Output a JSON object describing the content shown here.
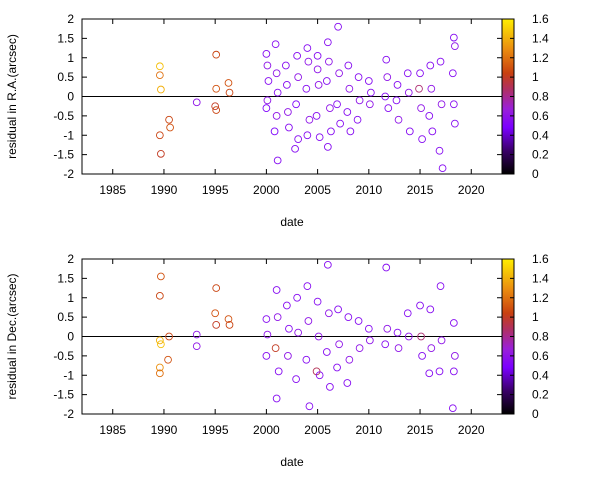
{
  "chart_data": [
    {
      "type": "scatter",
      "xlabel": "date",
      "ylabel": "residual in R.A.(arcsec)",
      "xlim": [
        1982,
        2023
      ],
      "ylim": [
        -2,
        2
      ],
      "xticks": [
        "1985",
        "1990",
        "1995",
        "2000",
        "2005",
        "2010",
        "2015",
        "2020"
      ],
      "yticks": [
        "-2",
        "-1.5",
        "-1",
        "-0.5",
        "0",
        "0.5",
        "1",
        "1.5",
        "2"
      ],
      "zero_line": true,
      "colorbar": {
        "range": [
          0,
          1.6
        ],
        "ticks": [
          "0",
          "0.2",
          "0.4",
          "0.6",
          "0.8",
          "1",
          "1.2",
          "1.4",
          "1.6"
        ]
      },
      "series": [
        {
          "points": [
            [
              1989.6,
              0.78,
              1.45
            ],
            [
              1989.6,
              0.55,
              1.2
            ],
            [
              1989.7,
              0.18,
              1.4
            ],
            [
              1989.6,
              -1.0,
              1.05
            ],
            [
              1989.7,
              -1.48,
              1.0
            ],
            [
              1990.5,
              -0.6,
              1.05
            ],
            [
              1990.6,
              -0.8,
              1.1
            ],
            [
              1993.2,
              -0.15,
              0.6
            ],
            [
              1995.1,
              1.08,
              1.05
            ],
            [
              1995.1,
              0.2,
              1.1
            ],
            [
              1995.0,
              -0.25,
              1.0
            ],
            [
              1995.1,
              -0.35,
              1.05
            ],
            [
              1996.3,
              0.35,
              1.1
            ],
            [
              1996.4,
              0.1,
              1.05
            ],
            [
              2000.0,
              1.1,
              0.55
            ],
            [
              2000.1,
              0.8,
              0.6
            ],
            [
              2000.2,
              0.4,
              0.55
            ],
            [
              2000.1,
              -0.1,
              0.6
            ],
            [
              2000.0,
              -0.3,
              0.5
            ],
            [
              2000.9,
              1.35,
              0.55
            ],
            [
              2001.0,
              0.6,
              0.6
            ],
            [
              2001.1,
              0.1,
              0.55
            ],
            [
              2001.0,
              -0.5,
              0.6
            ],
            [
              2001.1,
              -1.65,
              0.55
            ],
            [
              2000.8,
              -0.9,
              0.5
            ],
            [
              2002.0,
              0.3,
              0.55
            ],
            [
              2002.1,
              -0.4,
              0.6
            ],
            [
              2002.2,
              -0.8,
              0.55
            ],
            [
              2001.9,
              0.8,
              0.55
            ],
            [
              2003.0,
              1.05,
              0.55
            ],
            [
              2003.1,
              0.5,
              0.6
            ],
            [
              2002.9,
              -0.2,
              0.5
            ],
            [
              2003.1,
              -1.1,
              0.55
            ],
            [
              2002.8,
              -1.35,
              0.55
            ],
            [
              2004.0,
              1.25,
              0.55
            ],
            [
              2004.1,
              0.9,
              0.6
            ],
            [
              2003.9,
              0.2,
              0.55
            ],
            [
              2004.2,
              -0.6,
              0.6
            ],
            [
              2004.0,
              -1.0,
              0.55
            ],
            [
              2005.0,
              1.05,
              0.55
            ],
            [
              2005.1,
              0.3,
              0.6
            ],
            [
              2004.9,
              -0.5,
              0.55
            ],
            [
              2005.2,
              -1.05,
              0.55
            ],
            [
              2005.0,
              0.7,
              0.6
            ],
            [
              2006.0,
              1.4,
              0.55
            ],
            [
              2006.1,
              0.9,
              0.6
            ],
            [
              2005.9,
              0.4,
              0.55
            ],
            [
              2006.2,
              -0.3,
              0.6
            ],
            [
              2006.0,
              -1.3,
              0.55
            ],
            [
              2006.3,
              -0.9,
              0.55
            ],
            [
              2007.0,
              1.8,
              0.55
            ],
            [
              2007.1,
              0.6,
              0.6
            ],
            [
              2006.9,
              -0.2,
              0.55
            ],
            [
              2007.2,
              -0.7,
              0.55
            ],
            [
              2008.0,
              0.8,
              0.55
            ],
            [
              2008.1,
              0.2,
              0.6
            ],
            [
              2007.9,
              -0.4,
              0.55
            ],
            [
              2008.2,
              -0.9,
              0.55
            ],
            [
              2009.0,
              0.5,
              0.55
            ],
            [
              2009.1,
              -0.1,
              0.6
            ],
            [
              2008.9,
              -0.6,
              0.55
            ],
            [
              2010.0,
              0.4,
              0.55
            ],
            [
              2010.1,
              -0.2,
              0.6
            ],
            [
              2010.2,
              0.1,
              0.55
            ],
            [
              2011.7,
              0.95,
              0.55
            ],
            [
              2011.8,
              0.5,
              0.6
            ],
            [
              2011.6,
              0.0,
              0.55
            ],
            [
              2011.9,
              -0.3,
              0.55
            ],
            [
              2012.8,
              0.3,
              0.55
            ],
            [
              2012.9,
              -0.6,
              0.6
            ],
            [
              2012.7,
              -0.1,
              0.55
            ],
            [
              2013.8,
              0.6,
              0.55
            ],
            [
              2013.9,
              0.1,
              0.6
            ],
            [
              2014.0,
              -0.9,
              0.55
            ],
            [
              2015.0,
              0.6,
              0.55
            ],
            [
              2015.1,
              -0.3,
              0.6
            ],
            [
              2015.2,
              -1.1,
              0.55
            ],
            [
              2014.9,
              0.2,
              0.85
            ],
            [
              2016.0,
              0.8,
              0.55
            ],
            [
              2016.1,
              0.2,
              0.6
            ],
            [
              2015.9,
              -0.5,
              0.55
            ],
            [
              2016.2,
              -0.9,
              0.55
            ],
            [
              2017.0,
              0.9,
              0.55
            ],
            [
              2017.1,
              -0.2,
              0.6
            ],
            [
              2016.9,
              -1.4,
              0.55
            ],
            [
              2017.2,
              -1.85,
              0.55
            ],
            [
              2018.3,
              1.52,
              0.55
            ],
            [
              2018.4,
              1.3,
              0.6
            ],
            [
              2018.2,
              0.6,
              0.55
            ],
            [
              2018.3,
              -0.2,
              0.55
            ],
            [
              2018.4,
              -0.7,
              0.55
            ]
          ]
        }
      ]
    },
    {
      "type": "scatter",
      "xlabel": "date",
      "ylabel": "residual in Dec.(arcsec)",
      "xlim": [
        1982,
        2023
      ],
      "ylim": [
        -2,
        2
      ],
      "xticks": [
        "1985",
        "1990",
        "1995",
        "2000",
        "2005",
        "2010",
        "2015",
        "2020"
      ],
      "yticks": [
        "-2",
        "-1.5",
        "-1",
        "-0.5",
        "0",
        "0.5",
        "1",
        "1.5",
        "2"
      ],
      "zero_line": true,
      "colorbar": {
        "range": [
          0,
          1.6
        ],
        "ticks": [
          "0",
          "0.2",
          "0.4",
          "0.6",
          "0.8",
          "1",
          "1.2",
          "1.4",
          "1.6"
        ]
      },
      "series": [
        {
          "points": [
            [
              1989.7,
              1.55,
              1.1
            ],
            [
              1989.6,
              1.05,
              1.05
            ],
            [
              1989.6,
              -0.1,
              1.4
            ],
            [
              1989.7,
              -0.2,
              1.45
            ],
            [
              1989.6,
              -0.8,
              1.3
            ],
            [
              1989.6,
              -0.95,
              1.2
            ],
            [
              1990.5,
              0.0,
              1.05
            ],
            [
              1990.4,
              -0.6,
              1.1
            ],
            [
              1993.2,
              0.05,
              0.6
            ],
            [
              1993.2,
              -0.25,
              0.6
            ],
            [
              1995.1,
              1.25,
              1.05
            ],
            [
              1995.0,
              0.6,
              1.1
            ],
            [
              1995.1,
              0.3,
              1.0
            ],
            [
              1996.3,
              0.45,
              1.1
            ],
            [
              1996.4,
              0.3,
              1.05
            ],
            [
              2000.0,
              0.45,
              0.55
            ],
            [
              2000.1,
              0.05,
              0.6
            ],
            [
              2000.0,
              -0.5,
              0.55
            ],
            [
              2001.0,
              1.2,
              0.55
            ],
            [
              2001.1,
              0.5,
              0.6
            ],
            [
              2000.9,
              -0.3,
              1.0
            ],
            [
              2001.0,
              -1.6,
              0.55
            ],
            [
              2001.2,
              -0.9,
              0.55
            ],
            [
              2002.0,
              0.8,
              0.55
            ],
            [
              2002.1,
              -0.5,
              0.6
            ],
            [
              2002.2,
              0.2,
              0.55
            ],
            [
              2003.0,
              1.0,
              0.55
            ],
            [
              2003.1,
              0.1,
              0.6
            ],
            [
              2002.9,
              -1.1,
              0.55
            ],
            [
              2004.0,
              1.3,
              0.55
            ],
            [
              2004.1,
              0.4,
              0.6
            ],
            [
              2003.9,
              -0.6,
              0.55
            ],
            [
              2004.2,
              -1.8,
              0.55
            ],
            [
              2005.0,
              0.9,
              0.55
            ],
            [
              2005.1,
              0.0,
              0.6
            ],
            [
              2004.9,
              -0.9,
              0.9
            ],
            [
              2005.2,
              -1.0,
              0.55
            ],
            [
              2006.0,
              1.85,
              0.55
            ],
            [
              2006.1,
              0.6,
              0.6
            ],
            [
              2005.9,
              -0.4,
              0.55
            ],
            [
              2006.2,
              -1.3,
              0.55
            ],
            [
              2007.0,
              0.7,
              0.55
            ],
            [
              2007.1,
              -0.2,
              0.6
            ],
            [
              2006.9,
              -0.8,
              0.55
            ],
            [
              2008.0,
              0.5,
              0.55
            ],
            [
              2008.1,
              -0.6,
              0.6
            ],
            [
              2007.9,
              -1.2,
              0.55
            ],
            [
              2009.0,
              0.4,
              0.55
            ],
            [
              2009.1,
              -0.3,
              0.6
            ],
            [
              2010.0,
              0.2,
              0.55
            ],
            [
              2010.1,
              -0.1,
              0.6
            ],
            [
              2011.7,
              1.78,
              0.55
            ],
            [
              2011.8,
              0.2,
              0.6
            ],
            [
              2011.6,
              -0.2,
              0.55
            ],
            [
              2012.8,
              0.1,
              0.55
            ],
            [
              2012.9,
              -0.3,
              0.6
            ],
            [
              2013.8,
              0.6,
              0.55
            ],
            [
              2013.9,
              0.0,
              0.6
            ],
            [
              2015.0,
              0.8,
              0.55
            ],
            [
              2015.1,
              0.0,
              0.85
            ],
            [
              2015.2,
              -0.5,
              0.55
            ],
            [
              2016.0,
              0.7,
              0.55
            ],
            [
              2016.1,
              -0.3,
              0.6
            ],
            [
              2015.9,
              -0.95,
              0.55
            ],
            [
              2017.0,
              1.3,
              0.55
            ],
            [
              2017.1,
              -0.1,
              0.6
            ],
            [
              2016.9,
              -0.9,
              0.55
            ],
            [
              2018.3,
              0.35,
              0.55
            ],
            [
              2018.4,
              -0.5,
              0.6
            ],
            [
              2018.2,
              -1.85,
              0.55
            ],
            [
              2018.3,
              -0.9,
              0.55
            ]
          ]
        }
      ]
    }
  ]
}
